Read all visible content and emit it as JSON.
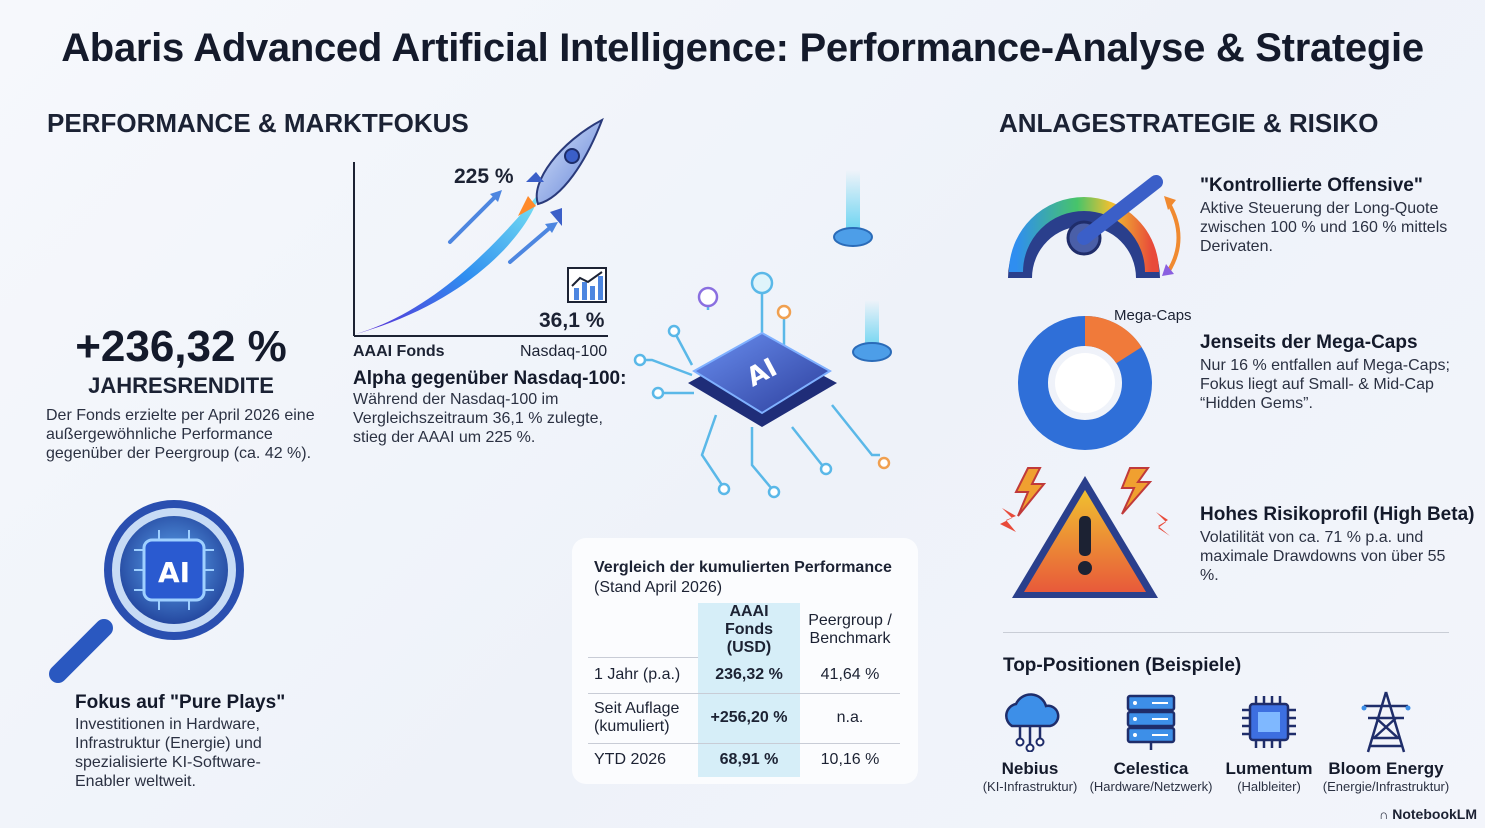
{
  "title": "Abaris Advanced Artificial Intelligence: Performance-Analyse & Strategie",
  "left": {
    "heading": "PERFORMANCE & MARKTFOKUS",
    "return_value": "+236,32 %",
    "return_label": "JAHRESRENDITE",
    "return_text": "Der Fonds erzielte per April 2026 eine außergewöhnliche Performance gegenüber der Peergroup (ca. 42 %).",
    "chart": {
      "fund_value": "225 %",
      "index_value": "36,1 %",
      "fund_label": "AAAI Fonds",
      "index_label": "Nasdaq-100",
      "alpha_head": "Alpha gegenüber Nasdaq-100:",
      "alpha_text": "Während der Nasdaq-100 im Vergleichszeitraum 36,1 % zulegte, stieg der AAAI um 225 %."
    },
    "pureplay_head": "Fokus auf \"Pure Plays\"",
    "pureplay_text": "Investitionen in Hardware, Infrastruktur (Energie) und spezialisierte KI-Software-Enabler weltweit.",
    "ai_badge": "AI",
    "chip_label": "AI"
  },
  "table": {
    "title": "Vergleich der kumulierten Performance",
    "subtitle": "(Stand April 2026)",
    "col_fund": "AAAI Fonds (USD)",
    "col_peer": "Peergroup / Benchmark",
    "rows": [
      {
        "label": "1 Jahr (p.a.)",
        "fund": "236,32 %",
        "peer": "41,64 %"
      },
      {
        "label": "Seit Auflage (kumuliert)",
        "fund": "+256,20 %",
        "peer": "n.a."
      },
      {
        "label": "YTD 2026",
        "fund": "68,91 %",
        "peer": "10,16 %"
      }
    ]
  },
  "right": {
    "heading": "ANLAGESTRATEGIE & RISIKO",
    "items": [
      {
        "head": "\"Kontrollierte Offensive\"",
        "text": "Aktive Steuerung der Long-Quote zwischen 100 % und 160 % mittels Derivaten."
      },
      {
        "head": "Jenseits der Mega-Caps",
        "text": "Nur 16 % entfallen auf Mega-Caps; Fokus liegt auf Small- & Mid-Cap “Hidden Gems”."
      },
      {
        "head": "Hohes Risikoprofil (High Beta)",
        "text": "Volatilität von ca. 71 % p.a. und maximale Drawdowns von über 55 %."
      }
    ],
    "donut_label": "Mega-Caps",
    "mega_cap_share": 0.16,
    "top_head": "Top-Positionen (Beispiele)",
    "positions": [
      {
        "name": "Nebius",
        "category": "(KI-Infrastruktur)",
        "icon": "cloud-network-icon"
      },
      {
        "name": "Celestica",
        "category": "(Hardware/Netzwerk)",
        "icon": "server-rack-icon"
      },
      {
        "name": "Lumentum",
        "category": "(Halbleiter)",
        "icon": "chip-icon"
      },
      {
        "name": "Bloom Energy",
        "category": "(Energie/Infrastruktur)",
        "icon": "power-tower-icon"
      }
    ]
  },
  "brand": "NotebookLM"
}
